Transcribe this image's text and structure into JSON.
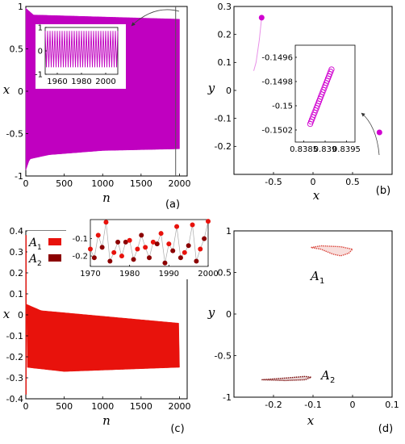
{
  "chart_data": [
    {
      "panel_label": "(a)",
      "type": "line",
      "xlabel": "n",
      "ylabel": "x",
      "xlim": [
        0,
        2100
      ],
      "ylim": [
        -1,
        1
      ],
      "x_ticks": [
        "0",
        "500",
        "1000",
        "1500",
        "2000"
      ],
      "y_ticks": [
        "-1",
        "-0.5",
        "0",
        "0.5",
        "1"
      ],
      "series": [
        {
          "color": "#c000c0",
          "upper_envelope": [
            [
              0,
              0.98
            ],
            [
              100,
              0.9
            ],
            [
              2000,
              0.85
            ]
          ],
          "lower_envelope": [
            [
              0,
              -0.93
            ],
            [
              50,
              -0.8
            ],
            [
              300,
              -0.75
            ],
            [
              1000,
              -0.7
            ],
            [
              2000,
              -0.68
            ]
          ]
        }
      ],
      "marker_line_x": 1950,
      "inset": {
        "type": "line",
        "xlim": [
          1950,
          2010
        ],
        "ylim": [
          -1,
          1
        ],
        "x_ticks": [
          "1960",
          "1980",
          "2000"
        ],
        "y_ticks": [
          "1",
          "0",
          "-1"
        ],
        "amplitude_high": 0.85,
        "amplitude_low": -0.7,
        "period": 2
      }
    },
    {
      "panel_label": "(b)",
      "type": "scatter",
      "xlabel": "x",
      "ylabel": "y",
      "xlim": [
        -1,
        1
      ],
      "ylim": [
        -0.3,
        0.3
      ],
      "x_ticks": [
        "-0.5",
        "0",
        "0.5"
      ],
      "y_ticks": [
        "-0.2",
        "-0.1",
        "0",
        "0.1",
        "0.2",
        "0.3"
      ],
      "points": [
        [
          -0.65,
          0.26
        ],
        [
          0.84,
          -0.15
        ]
      ],
      "trail": [
        [
          -0.65,
          0.26
        ],
        [
          -0.68,
          0.18
        ],
        [
          -0.72,
          0.1
        ],
        [
          -0.75,
          0.07
        ]
      ],
      "color": "#d000d0",
      "inset": {
        "xlim": [
          0.8383,
          0.8397
        ],
        "ylim": [
          -0.1503,
          -0.1495
        ],
        "x_ticks": [
          "0.8385",
          "0.839",
          "0.8395"
        ],
        "y_ticks": [
          "-0.1496",
          "-0.1498",
          "-0.15",
          "-0.1502"
        ],
        "segment": [
          [
            0.83865,
            -0.15015
          ],
          [
            0.83915,
            -0.1497
          ]
        ]
      }
    },
    {
      "panel_label": "(c)",
      "type": "line",
      "xlabel": "n",
      "ylabel": "x",
      "xlim": [
        0,
        2100
      ],
      "ylim": [
        -0.4,
        0.4
      ],
      "x_ticks": [
        "0",
        "500",
        "1000",
        "1500",
        "2000"
      ],
      "y_ticks": [
        "-0.4",
        "-0.3",
        "-0.2",
        "-0.1",
        "0",
        "0.1",
        "0.2",
        "0.3",
        "0.4"
      ],
      "legend": [
        "A1",
        "A2"
      ],
      "series": [
        {
          "name": "A1",
          "color": "#e8120c",
          "upper_envelope": [
            [
              10,
              0.05
            ],
            [
              200,
              0.02
            ],
            [
              2000,
              -0.04
            ]
          ],
          "lower_envelope": [
            [
              10,
              -0.25
            ],
            [
              500,
              -0.27
            ],
            [
              2000,
              -0.25
            ]
          ]
        },
        {
          "name": "A2",
          "color": "#8b0000"
        }
      ],
      "inset": {
        "xlim": [
          1970,
          2000
        ],
        "ylim": [
          -0.26,
          0.01
        ],
        "x_ticks": [
          "1970",
          "1980",
          "1990",
          "2000"
        ],
        "y_ticks": [
          "-0.1",
          "-0.2"
        ],
        "points": [
          [
            1970,
            -0.16,
            "A1"
          ],
          [
            1971,
            -0.21,
            "A2"
          ],
          [
            1972,
            -0.08,
            "A1"
          ],
          [
            1973,
            -0.15,
            "A2"
          ],
          [
            1974,
            -0.005,
            "A1"
          ],
          [
            1975,
            -0.23,
            "A2"
          ],
          [
            1976,
            -0.18,
            "A1"
          ],
          [
            1977,
            -0.12,
            "A2"
          ],
          [
            1978,
            -0.2,
            "A1"
          ],
          [
            1979,
            -0.12,
            "A2"
          ],
          [
            1980,
            -0.11,
            "A1"
          ],
          [
            1981,
            -0.22,
            "A2"
          ],
          [
            1982,
            -0.16,
            "A1"
          ],
          [
            1983,
            -0.08,
            "A2"
          ],
          [
            1984,
            -0.15,
            "A1"
          ],
          [
            1985,
            -0.21,
            "A2"
          ],
          [
            1986,
            -0.12,
            "A1"
          ],
          [
            1987,
            -0.13,
            "A2"
          ],
          [
            1988,
            -0.07,
            "A1"
          ],
          [
            1989,
            -0.24,
            "A2"
          ],
          [
            1990,
            -0.13,
            "A1"
          ],
          [
            1991,
            -0.17,
            "A2"
          ],
          [
            1992,
            -0.03,
            "A1"
          ],
          [
            1993,
            -0.21,
            "A2"
          ],
          [
            1994,
            -0.18,
            "A1"
          ],
          [
            1995,
            -0.14,
            "A2"
          ],
          [
            1996,
            -0.02,
            "A1"
          ],
          [
            1997,
            -0.23,
            "A2"
          ],
          [
            1998,
            -0.16,
            "A1"
          ],
          [
            1999,
            -0.1,
            "A2"
          ],
          [
            2000,
            0.0,
            "A1"
          ]
        ]
      }
    },
    {
      "panel_label": "(d)",
      "type": "scatter",
      "xlabel": "x",
      "ylabel": "y",
      "xlim": [
        -0.3,
        0.1
      ],
      "ylim": [
        -1,
        1
      ],
      "x_ticks": [
        "-0.2",
        "-0.1",
        "0",
        "0.1"
      ],
      "y_ticks": [
        "-1",
        "-0.5",
        "0",
        "0.5",
        "1"
      ],
      "attractors": [
        {
          "name": "A1",
          "color": "#d9463c",
          "upper": [
            [
              -0.105,
              0.8
            ],
            [
              -0.08,
              0.82
            ],
            [
              -0.03,
              0.81
            ],
            [
              0.0,
              0.78
            ]
          ],
          "lower": [
            [
              -0.105,
              0.8
            ],
            [
              -0.08,
              0.78
            ],
            [
              -0.05,
              0.72
            ],
            [
              -0.03,
              0.7
            ],
            [
              -0.01,
              0.73
            ],
            [
              0.0,
              0.78
            ]
          ]
        },
        {
          "name": "A2",
          "color": "#7a0a0a",
          "upper": [
            [
              -0.23,
              -0.79
            ],
            [
              -0.17,
              -0.77
            ],
            [
              -0.12,
              -0.75
            ],
            [
              -0.105,
              -0.76
            ]
          ],
          "lower": [
            [
              -0.23,
              -0.79
            ],
            [
              -0.17,
              -0.8
            ],
            [
              -0.12,
              -0.79
            ],
            [
              -0.105,
              -0.76
            ]
          ]
        }
      ],
      "labels": [
        "A1",
        "A2"
      ]
    }
  ]
}
